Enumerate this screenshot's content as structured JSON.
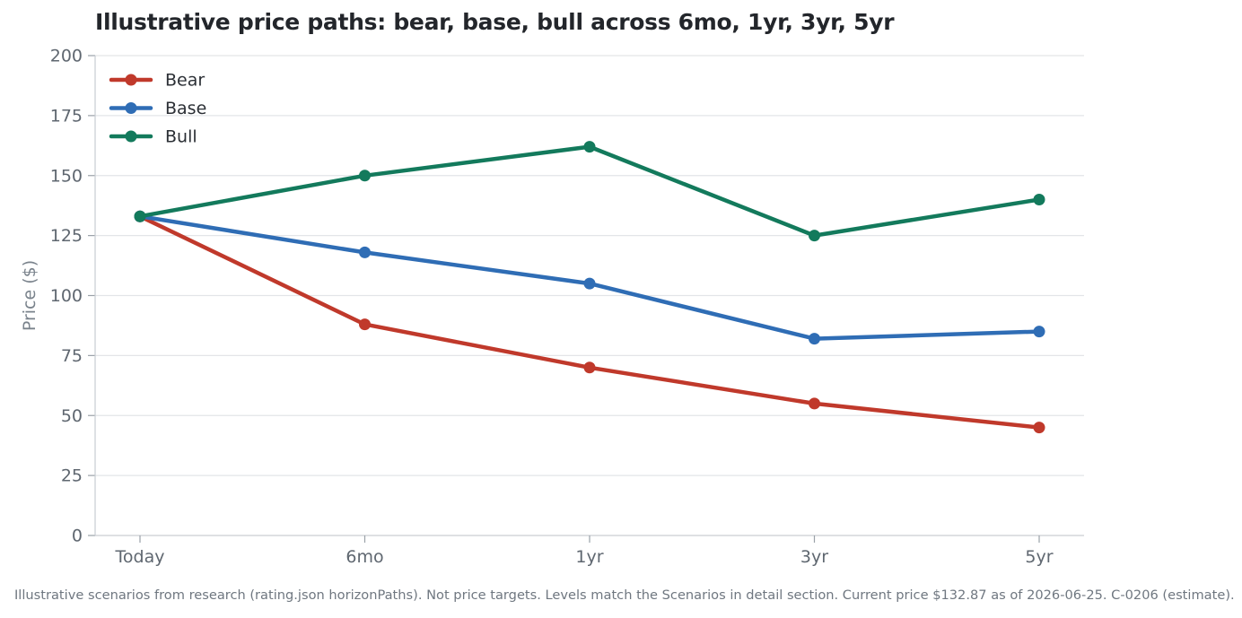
{
  "footnote": "Illustrative scenarios from research (rating.json horizonPaths). Not price targets. Levels match the Scenarios in detail section. Current price $132.87 as of 2026-06-25. C-0206 (estimate).",
  "chart_data": {
    "type": "line",
    "title": "Illustrative price paths: bear, base, bull across 6mo, 1yr, 3yr, 5yr",
    "xlabel": "",
    "ylabel": "Price ($)",
    "categories": [
      "Today",
      "6mo",
      "1yr",
      "3yr",
      "5yr"
    ],
    "ylim": [
      0,
      200
    ],
    "yticks": [
      0,
      25,
      50,
      75,
      100,
      125,
      150,
      175,
      200
    ],
    "grid": true,
    "legend_position": "top-left",
    "series": [
      {
        "name": "Bear",
        "color": "#c0392b",
        "values": [
          133,
          88,
          70,
          55,
          45
        ]
      },
      {
        "name": "Base",
        "color": "#2f6db5",
        "values": [
          133,
          118,
          105,
          82,
          85
        ]
      },
      {
        "name": "Bull",
        "color": "#137a5c",
        "values": [
          133,
          150,
          162,
          125,
          140
        ]
      }
    ]
  }
}
